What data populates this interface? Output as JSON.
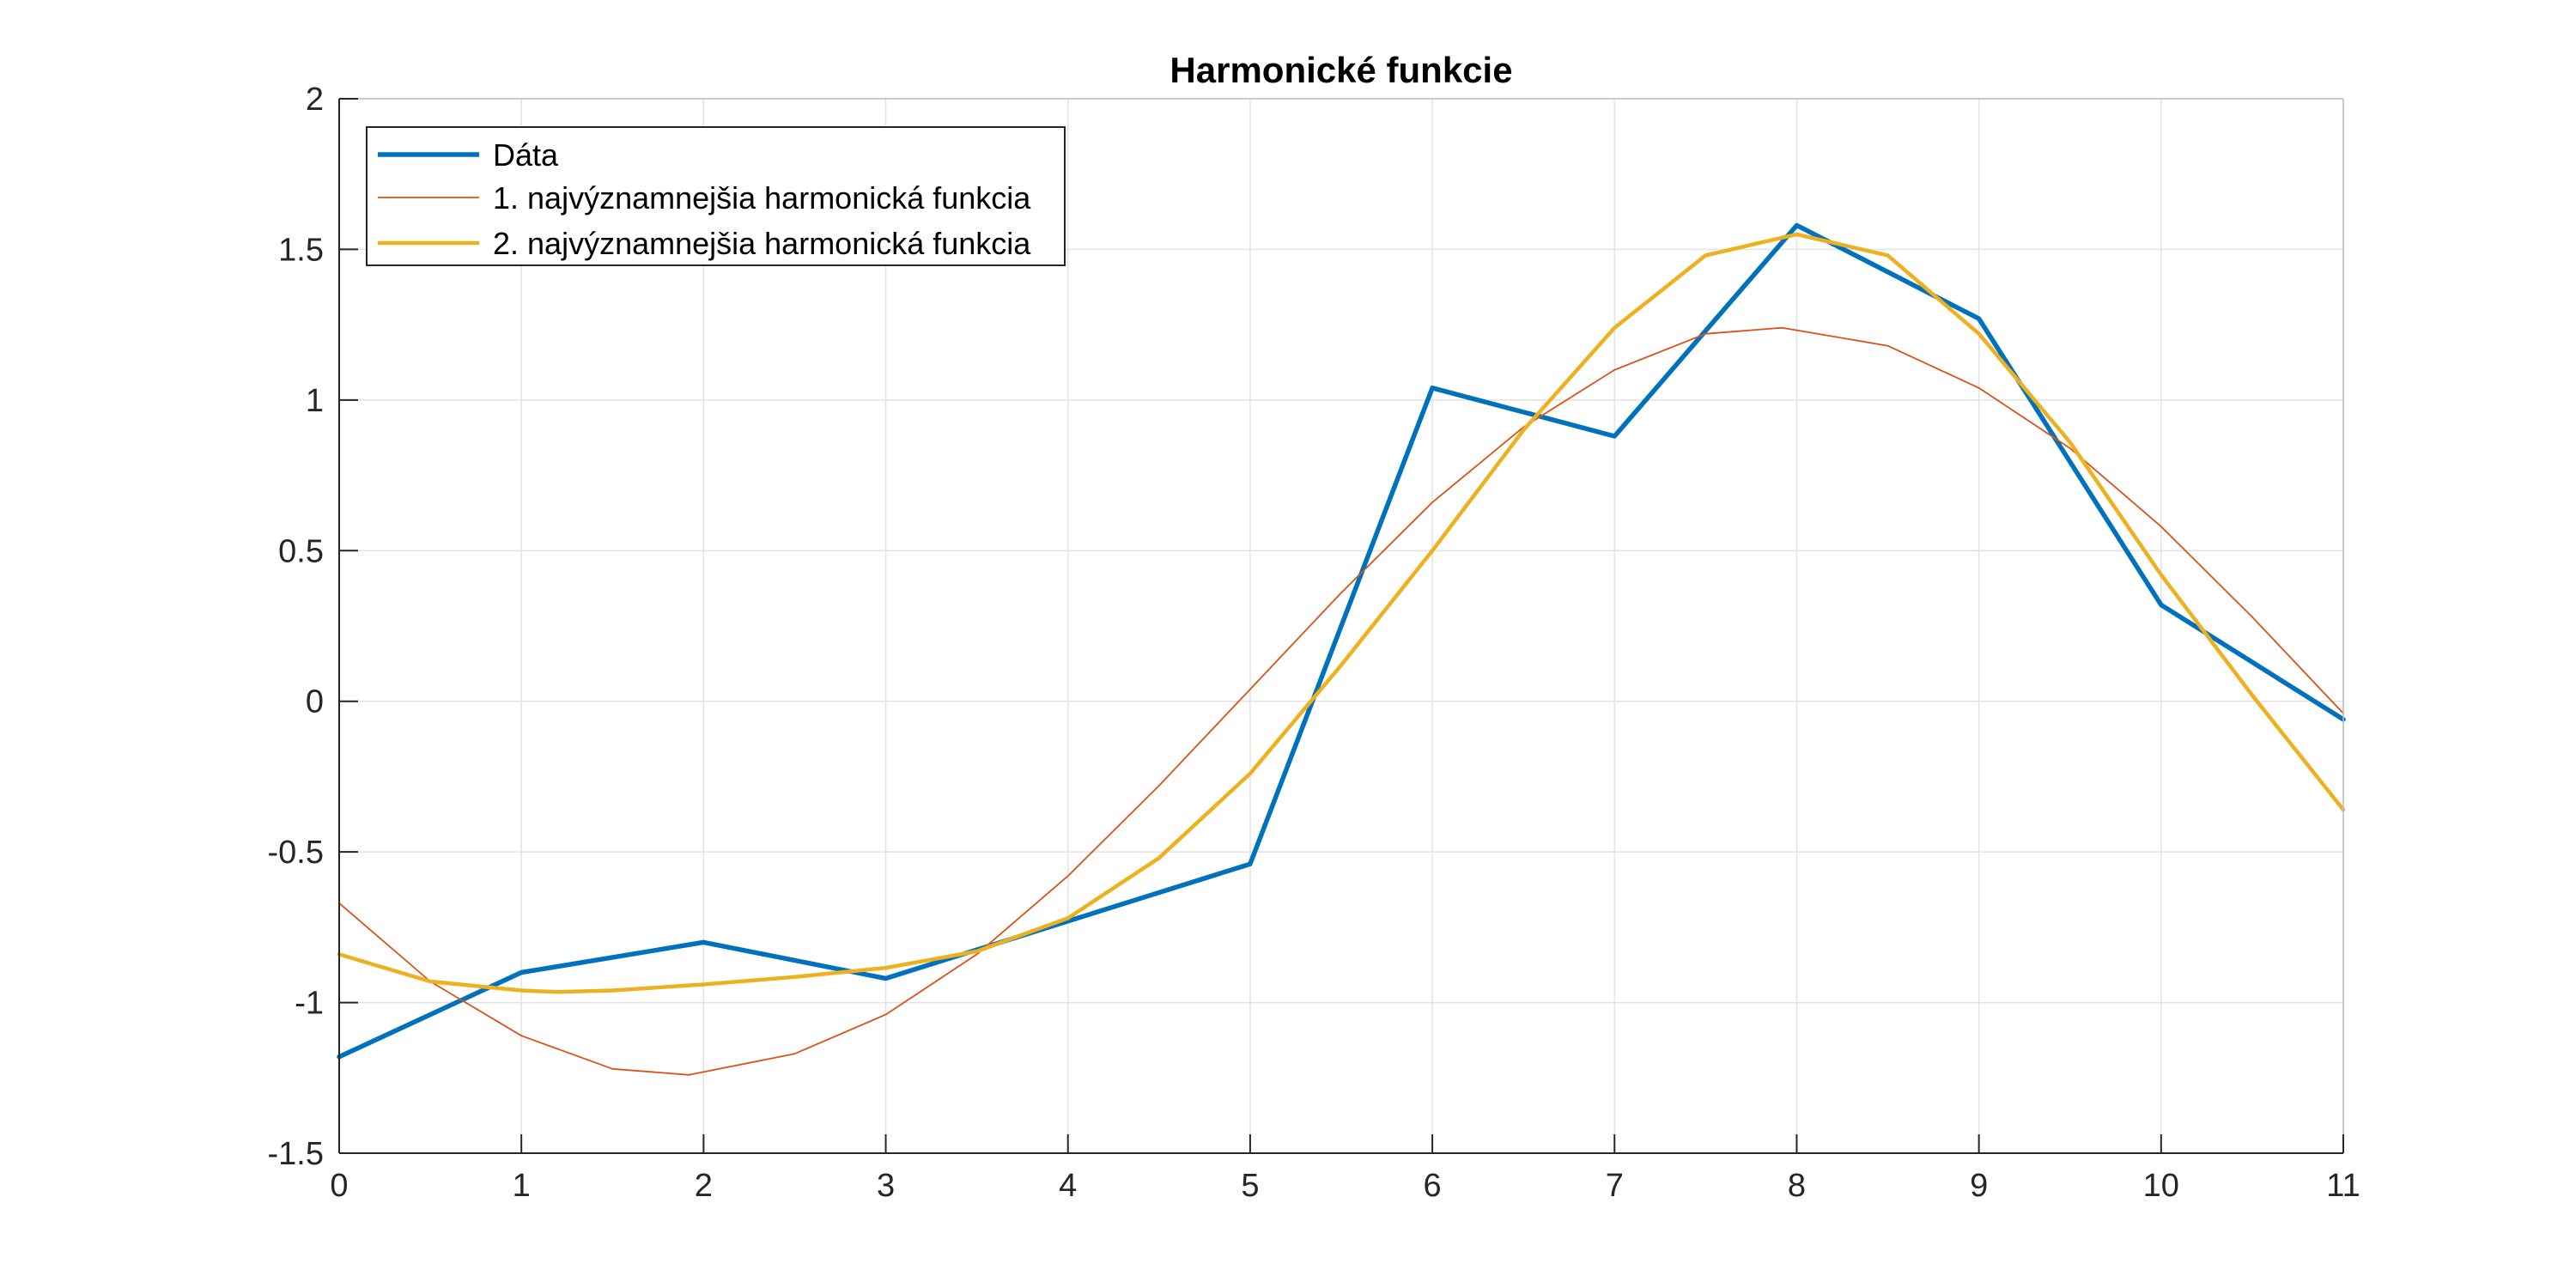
{
  "chart_data": {
    "type": "line",
    "title": "Harmonické funkcie",
    "xlabel": "",
    "ylabel": "",
    "xlim": [
      0,
      11
    ],
    "ylim": [
      -1.5,
      2
    ],
    "xticks": [
      0,
      1,
      2,
      3,
      4,
      5,
      6,
      7,
      8,
      9,
      10,
      11
    ],
    "yticks": [
      -1.5,
      -1,
      -0.5,
      0,
      0.5,
      1,
      1.5,
      2
    ],
    "grid": true,
    "legend_position": "top-left",
    "series": [
      {
        "name": "Dáta",
        "color": "#0072BD",
        "style": "thick",
        "x": [
          0,
          1,
          2,
          3,
          4,
          5,
          6,
          7,
          8,
          9,
          10,
          11
        ],
        "y": [
          -1.18,
          -0.9,
          -0.8,
          -0.92,
          -0.73,
          -0.54,
          1.04,
          0.88,
          1.58,
          1.27,
          0.32,
          -0.06
        ]
      },
      {
        "name": "1. najvýznamnejšia harmonická funkcia",
        "color": "#D95319",
        "style": "thin",
        "x": [
          0,
          0.5,
          1,
          1.5,
          1.92,
          2.5,
          3,
          3.5,
          4,
          4.5,
          5,
          5.5,
          6,
          6.5,
          7,
          7.5,
          7.92,
          8.5,
          9,
          9.5,
          10,
          10.5,
          11
        ],
        "y": [
          -0.67,
          -0.93,
          -1.11,
          -1.22,
          -1.24,
          -1.17,
          -1.04,
          -0.84,
          -0.58,
          -0.28,
          0.04,
          0.36,
          0.66,
          0.91,
          1.1,
          1.22,
          1.24,
          1.18,
          1.04,
          0.84,
          0.58,
          0.28,
          -0.04
        ]
      },
      {
        "name": "2. najvýznamnejšia harmonická funkcia",
        "color": "#EDB120",
        "style": "medium",
        "x": [
          0,
          0.5,
          1,
          1.2,
          1.5,
          2,
          2.5,
          3,
          3.5,
          4,
          4.5,
          5,
          5.5,
          6,
          6.5,
          7,
          7.5,
          8,
          8.5,
          9,
          9.5,
          10,
          10.5,
          11
        ],
        "y": [
          -0.84,
          -0.93,
          -0.96,
          -0.965,
          -0.96,
          -0.94,
          -0.915,
          -0.885,
          -0.83,
          -0.72,
          -0.52,
          -0.24,
          0.12,
          0.5,
          0.9,
          1.24,
          1.48,
          1.55,
          1.48,
          1.22,
          0.86,
          0.42,
          0.02,
          -0.36
        ]
      }
    ]
  }
}
